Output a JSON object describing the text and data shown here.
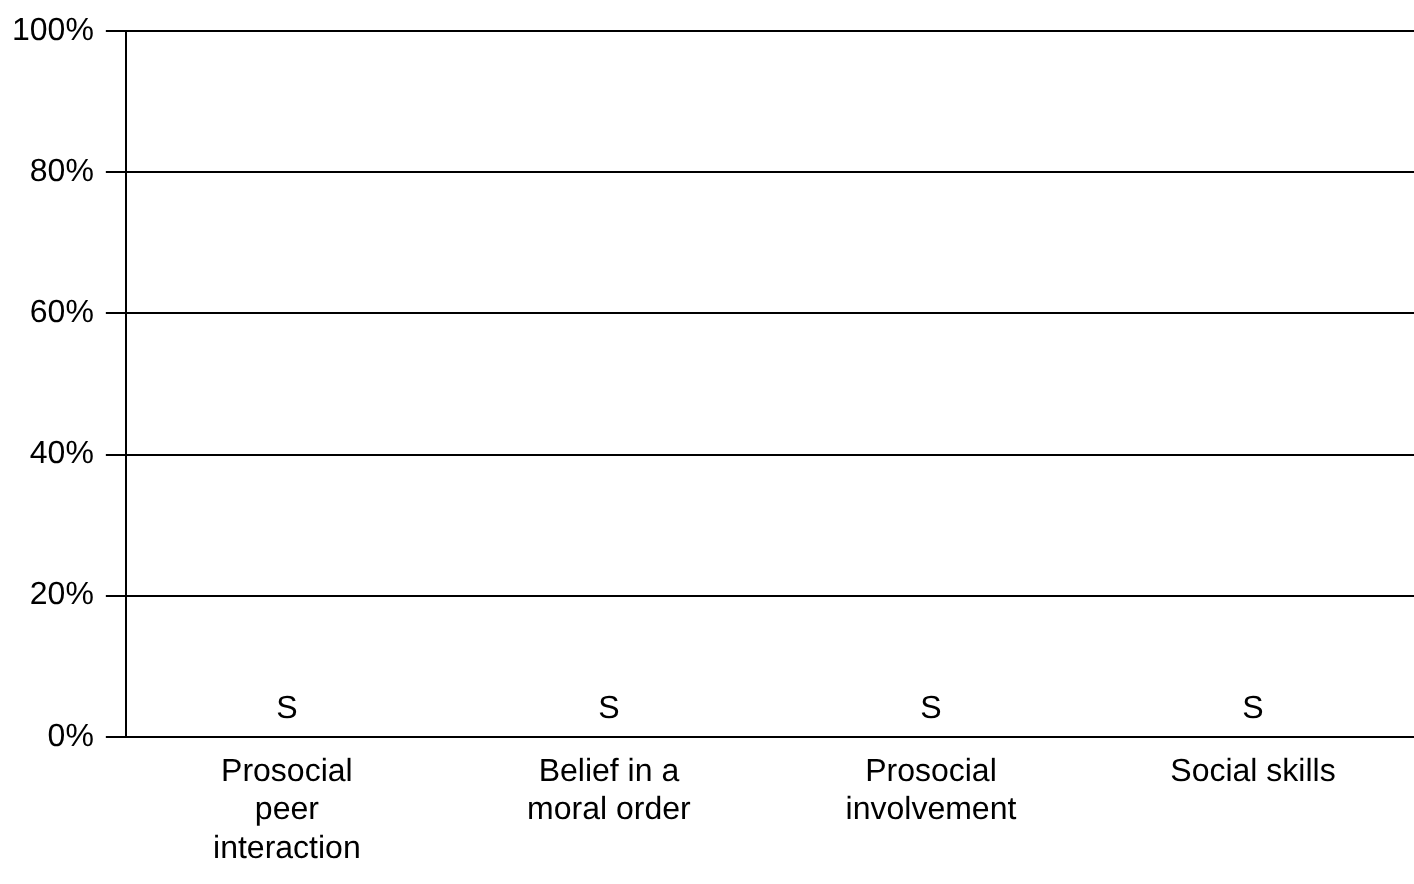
{
  "chart_data": {
    "type": "bar",
    "categories": [
      "Prosocial peer interaction",
      "Belief in a moral order",
      "Prosocial involvement",
      "Social skills"
    ],
    "values": [
      0,
      0,
      0,
      0
    ],
    "value_labels": [
      "S",
      "S",
      "S",
      "S"
    ],
    "ylim": [
      0,
      100
    ],
    "yticks": [
      {
        "value": 0,
        "label": "0%"
      },
      {
        "value": 20,
        "label": "20%"
      },
      {
        "value": 40,
        "label": "40%"
      },
      {
        "value": 60,
        "label": "60%"
      },
      {
        "value": 80,
        "label": "80%"
      },
      {
        "value": 100,
        "label": "100%"
      }
    ],
    "grid": "y"
  }
}
